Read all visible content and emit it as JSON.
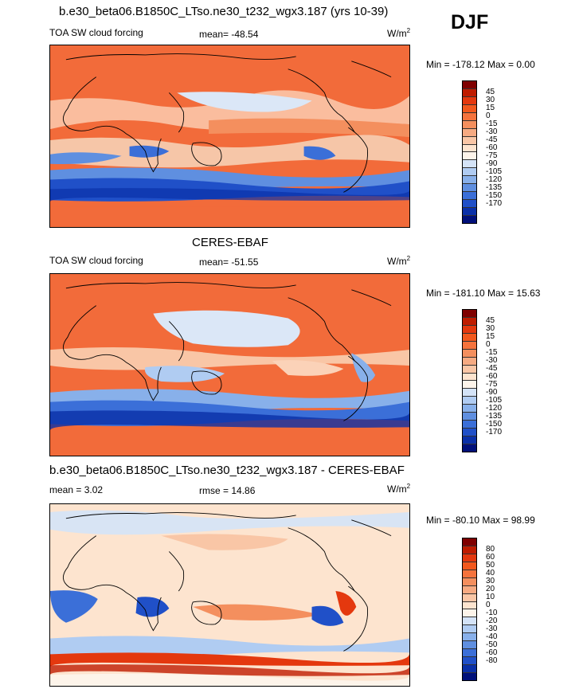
{
  "header": {
    "title": "b.e30_beta06.B1850C_LTso.ne30_t232_wgx3.187 (yrs 10-39)",
    "season": "DJF"
  },
  "panels": [
    {
      "id": "model",
      "title": "",
      "left_label": "TOA SW cloud forcing",
      "center_label": "mean= -48.54",
      "units_base": "W/m",
      "units_exp": "2",
      "minmax": "Min = -178.12 Max =   0.00",
      "colorbar": {
        "colors": [
          "#7f0000",
          "#bf1c00",
          "#e4380e",
          "#f2581d",
          "#f5733d",
          "#f48f5e",
          "#f6aa82",
          "#f9c6a6",
          "#fde4cf",
          "#fdf4ea",
          "#d4e3f7",
          "#b0ccf2",
          "#88b0ea",
          "#5f8fe0",
          "#3b6fd8",
          "#2050c8",
          "#0a30a8",
          "#00107a"
        ],
        "ticks": [
          "45",
          "30",
          "15",
          "0",
          "-15",
          "-30",
          "-45",
          "-60",
          "-75",
          "-90",
          "-105",
          "-120",
          "-135",
          "-150",
          "-170"
        ]
      }
    },
    {
      "id": "obs",
      "title": "CERES-EBAF",
      "left_label": "TOA SW cloud forcing",
      "center_label": "mean= -51.55",
      "units_base": "W/m",
      "units_exp": "2",
      "minmax": "Min = -181.10 Max = 15.63",
      "colorbar": {
        "colors": [
          "#7f0000",
          "#bf1c00",
          "#e4380e",
          "#f2581d",
          "#f5733d",
          "#f48f5e",
          "#f6aa82",
          "#f9c6a6",
          "#fde4cf",
          "#fdf4ea",
          "#d4e3f7",
          "#b0ccf2",
          "#88b0ea",
          "#5f8fe0",
          "#3b6fd8",
          "#2050c8",
          "#0a30a8",
          "#00107a"
        ],
        "ticks": [
          "45",
          "30",
          "15",
          "0",
          "-15",
          "-30",
          "-45",
          "-60",
          "-75",
          "-90",
          "-105",
          "-120",
          "-135",
          "-150",
          "-170"
        ]
      }
    },
    {
      "id": "diff",
      "title": "b.e30_beta06.B1850C_LTso.ne30_t232_wgx3.187 - CERES-EBAF",
      "left_label": "mean =  3.02",
      "center_label": "rmse =  14.86",
      "units_base": "W/m",
      "units_exp": "2",
      "minmax": "Min = -80.10 Max =  98.99",
      "colorbar": {
        "colors": [
          "#7f0000",
          "#bf1c00",
          "#e4380e",
          "#f2581d",
          "#f5733d",
          "#f48f5e",
          "#f6aa82",
          "#f9c6a6",
          "#fde4cf",
          "#fdf4ea",
          "#d4e3f7",
          "#b0ccf2",
          "#88b0ea",
          "#5f8fe0",
          "#3b6fd8",
          "#2050c8",
          "#0a30a8",
          "#00107a"
        ],
        "ticks": [
          "80",
          "60",
          "50",
          "40",
          "30",
          "20",
          "10",
          "0",
          "-10",
          "-20",
          "-30",
          "-40",
          "-50",
          "-60",
          "-80"
        ]
      }
    }
  ]
}
